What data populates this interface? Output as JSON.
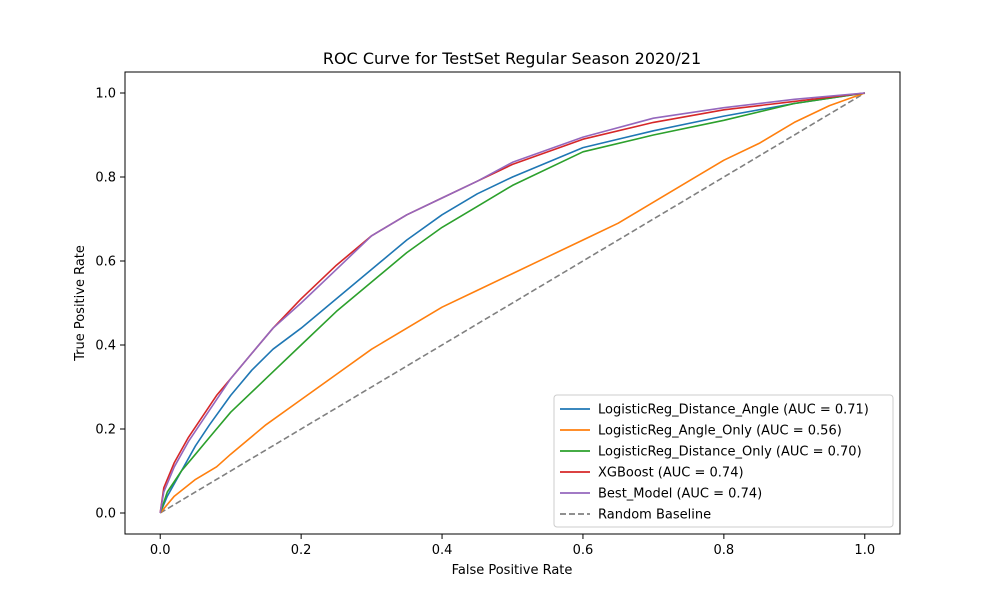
{
  "chart_data": {
    "type": "line",
    "title": "ROC Curve for TestSet Regular Season 2020/21",
    "xlabel": "False Positive Rate",
    "ylabel": "True Positive Rate",
    "xlim": [
      -0.05,
      1.05
    ],
    "ylim": [
      -0.05,
      1.05
    ],
    "xticks": [
      0.0,
      0.2,
      0.4,
      0.6,
      0.8,
      1.0
    ],
    "xtick_labels": [
      "0.0",
      "0.2",
      "0.4",
      "0.6",
      "0.8",
      "1.0"
    ],
    "yticks": [
      0.0,
      0.2,
      0.4,
      0.6,
      0.8,
      1.0
    ],
    "ytick_labels": [
      "0.0",
      "0.2",
      "0.4",
      "0.6",
      "0.8",
      "1.0"
    ],
    "grid": false,
    "legend_position": "lower-right",
    "series": [
      {
        "name": "LogisticReg_Distance_Angle (AUC = 0.71)",
        "color": "#1f77b4",
        "dashed": false,
        "x": [
          0,
          0.01,
          0.03,
          0.05,
          0.07,
          0.1,
          0.13,
          0.16,
          0.2,
          0.25,
          0.3,
          0.35,
          0.4,
          0.45,
          0.5,
          0.6,
          0.7,
          0.8,
          0.9,
          1.0
        ],
        "y": [
          0,
          0.04,
          0.1,
          0.16,
          0.21,
          0.28,
          0.34,
          0.39,
          0.44,
          0.51,
          0.58,
          0.65,
          0.71,
          0.76,
          0.8,
          0.87,
          0.91,
          0.945,
          0.975,
          1.0
        ]
      },
      {
        "name": "LogisticReg_Angle_Only (AUC = 0.56)",
        "color": "#ff7f0e",
        "dashed": false,
        "x": [
          0,
          0.02,
          0.05,
          0.08,
          0.1,
          0.15,
          0.2,
          0.25,
          0.3,
          0.35,
          0.4,
          0.45,
          0.5,
          0.55,
          0.6,
          0.65,
          0.7,
          0.75,
          0.8,
          0.85,
          0.9,
          0.95,
          1.0
        ],
        "y": [
          0,
          0.04,
          0.08,
          0.11,
          0.14,
          0.21,
          0.27,
          0.33,
          0.39,
          0.44,
          0.49,
          0.53,
          0.57,
          0.61,
          0.65,
          0.69,
          0.74,
          0.79,
          0.84,
          0.88,
          0.93,
          0.97,
          1.0
        ]
      },
      {
        "name": "LogisticReg_Distance_Only (AUC = 0.70)",
        "color": "#2ca02c",
        "dashed": false,
        "x": [
          0,
          0.01,
          0.03,
          0.05,
          0.07,
          0.1,
          0.15,
          0.2,
          0.25,
          0.3,
          0.35,
          0.4,
          0.45,
          0.5,
          0.6,
          0.7,
          0.8,
          0.9,
          1.0
        ],
        "y": [
          0,
          0.05,
          0.1,
          0.14,
          0.18,
          0.24,
          0.32,
          0.4,
          0.48,
          0.55,
          0.62,
          0.68,
          0.73,
          0.78,
          0.86,
          0.9,
          0.935,
          0.975,
          1.0
        ]
      },
      {
        "name": "XGBoost (AUC = 0.74)",
        "color": "#d62728",
        "dashed": false,
        "x": [
          0,
          0.005,
          0.02,
          0.04,
          0.06,
          0.08,
          0.1,
          0.13,
          0.16,
          0.2,
          0.25,
          0.3,
          0.35,
          0.4,
          0.45,
          0.5,
          0.6,
          0.7,
          0.8,
          0.9,
          1.0
        ],
        "y": [
          0,
          0.06,
          0.12,
          0.18,
          0.23,
          0.28,
          0.32,
          0.38,
          0.44,
          0.51,
          0.59,
          0.66,
          0.71,
          0.75,
          0.79,
          0.83,
          0.89,
          0.93,
          0.96,
          0.98,
          1.0
        ]
      },
      {
        "name": "Best_Model (AUC = 0.74)",
        "color": "#9467bd",
        "dashed": false,
        "x": [
          0,
          0.005,
          0.02,
          0.04,
          0.06,
          0.08,
          0.1,
          0.13,
          0.16,
          0.2,
          0.25,
          0.3,
          0.35,
          0.4,
          0.45,
          0.5,
          0.6,
          0.7,
          0.8,
          0.9,
          1.0
        ],
        "y": [
          0,
          0.05,
          0.11,
          0.17,
          0.22,
          0.27,
          0.32,
          0.38,
          0.44,
          0.5,
          0.58,
          0.66,
          0.71,
          0.75,
          0.79,
          0.835,
          0.895,
          0.94,
          0.965,
          0.985,
          1.0
        ]
      },
      {
        "name": "Random Baseline",
        "color": "#808080",
        "dashed": true,
        "x": [
          0,
          1
        ],
        "y": [
          0,
          1
        ]
      }
    ]
  }
}
